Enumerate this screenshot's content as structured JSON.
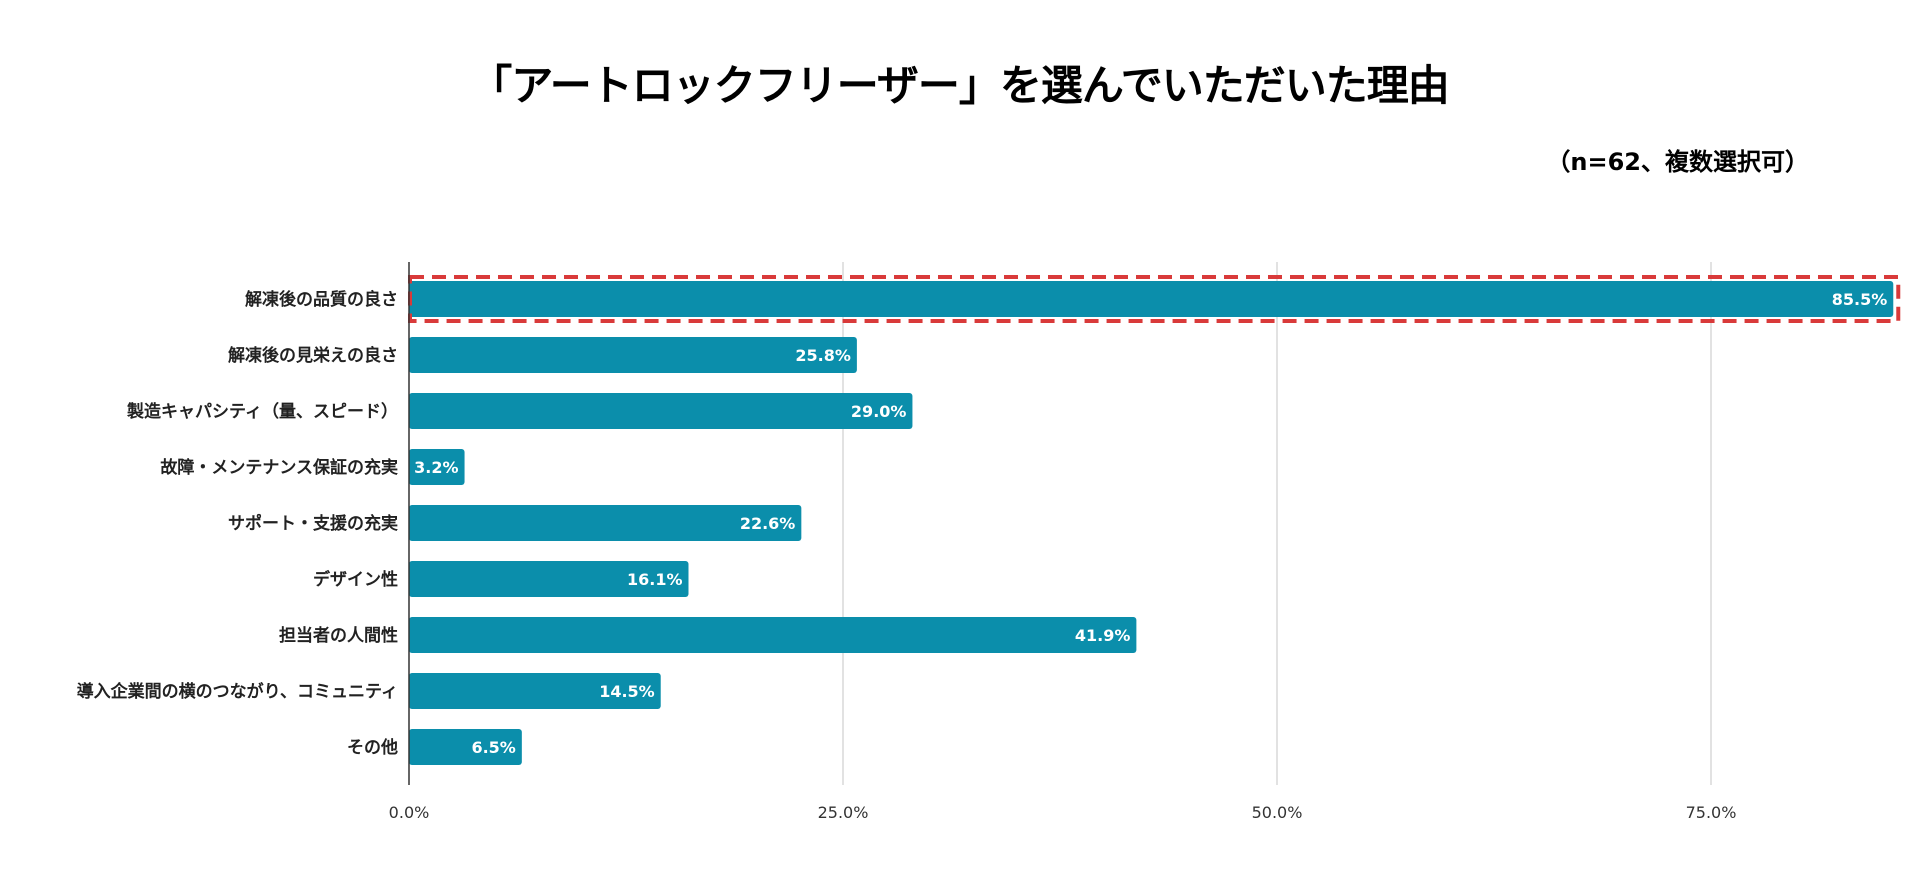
{
  "title": "「アートロックフリーザー」を選んでいただいた理由",
  "subtitle": "（n=62、複数選択可）",
  "chart_data": {
    "type": "bar",
    "orientation": "horizontal",
    "title": "「アートロックフリーザー」を選んでいただいた理由",
    "subtitle": "（n=62、複数選択可）",
    "categories": [
      "解凍後の品質の良さ",
      "解凍後の見栄えの良さ",
      "製造キャパシティ（量、スピード）",
      "故障・メンテナンス保証の充実",
      "サポート・支援の充実",
      "デザイン性",
      "担当者の人間性",
      "導入企業間の横のつながり、コミュニティ",
      "その他"
    ],
    "values": [
      85.5,
      25.8,
      29.0,
      3.2,
      22.6,
      16.1,
      41.9,
      14.5,
      6.5
    ],
    "data_labels": [
      "85.5%",
      "25.8%",
      "29.0%",
      "3.2%",
      "22.6%",
      "16.1%",
      "41.9%",
      "14.5%",
      "6.5%"
    ],
    "xlim": [
      0,
      85.5
    ],
    "x_ticks": [
      "0.0%",
      "25.0%",
      "50.0%",
      "75.0%"
    ],
    "x_tick_values": [
      0,
      25,
      50,
      75
    ],
    "grid": "vertical",
    "highlighted_category": "解凍後の品質の良さ",
    "colors": {
      "bar": "#0b8eab",
      "highlight_border": "#d93a3a",
      "grid": "#d9d9d9"
    }
  }
}
